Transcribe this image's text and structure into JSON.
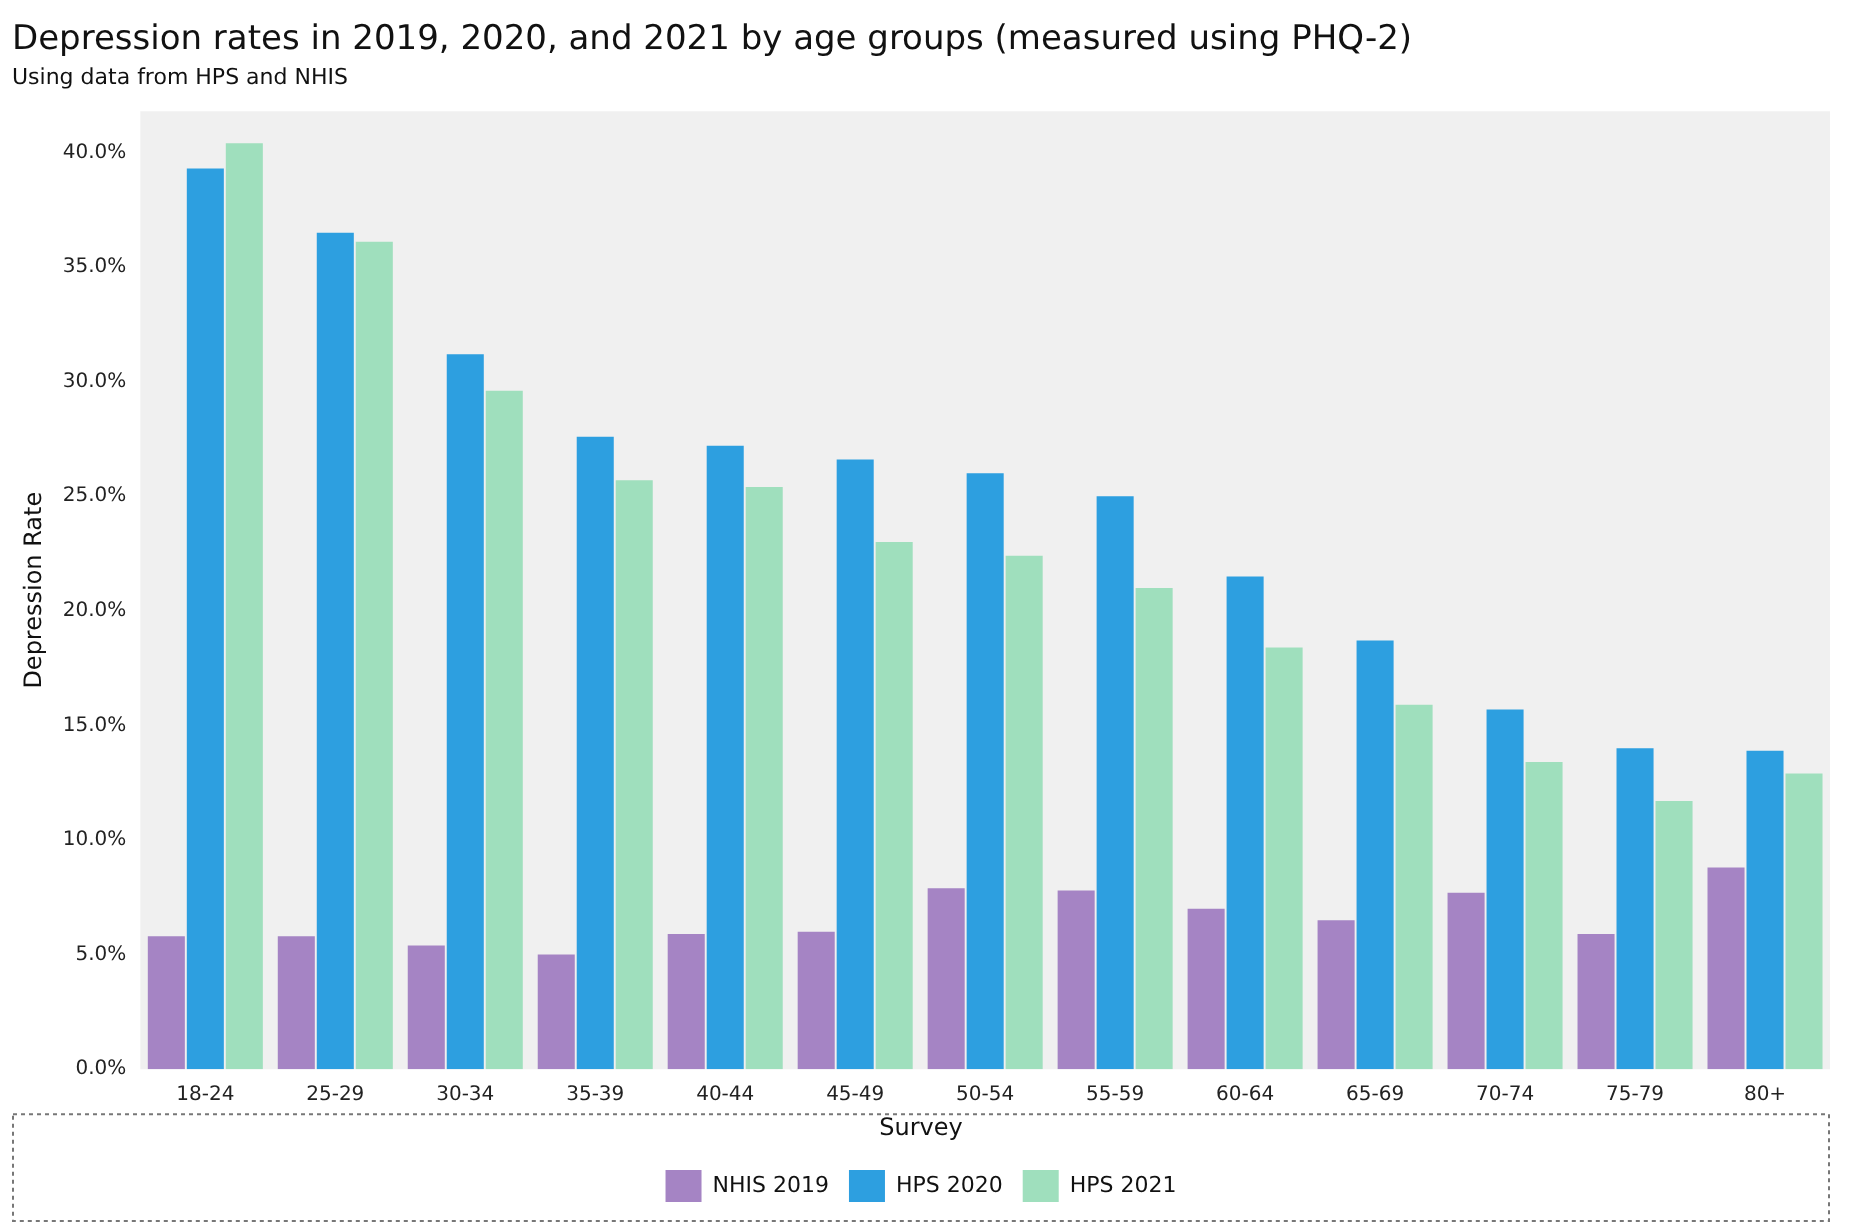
{
  "chart_data": {
    "type": "bar",
    "title": "Depression rates in 2019, 2020, and 2021 by age groups (measured using PHQ-2)",
    "subtitle": "Using data from HPS and NHIS",
    "ylabel": "Depression Rate",
    "legend_title": "Survey",
    "legend": "bottom",
    "grid": false,
    "categories": [
      "18-24",
      "25-29",
      "30-34",
      "35-39",
      "40-44",
      "45-49",
      "50-54",
      "55-59",
      "60-64",
      "65-69",
      "70-74",
      "75-79",
      "80+"
    ],
    "series": [
      {
        "name": "NHIS 2019",
        "color": "#a584c4",
        "values": [
          5.8,
          5.8,
          5.4,
          5.0,
          5.9,
          6.0,
          7.9,
          7.8,
          7.0,
          6.5,
          7.7,
          5.9,
          8.8
        ]
      },
      {
        "name": "HPS 2020",
        "color": "#2d9fe0",
        "values": [
          39.3,
          36.5,
          31.2,
          27.6,
          27.2,
          26.6,
          26.0,
          25.0,
          21.5,
          18.7,
          15.7,
          14.0,
          13.9
        ]
      },
      {
        "name": "HPS 2021",
        "color": "#9fdfbd",
        "values": [
          40.4,
          36.1,
          29.6,
          25.7,
          25.4,
          23.0,
          22.4,
          21.0,
          18.4,
          15.9,
          13.4,
          11.7,
          12.9
        ]
      }
    ],
    "ylim": [
      0,
      41.8
    ],
    "yticks": [
      {
        "value": 0,
        "label": "0.0%"
      },
      {
        "value": 5,
        "label": "5.0%"
      },
      {
        "value": 10,
        "label": "10.0%"
      },
      {
        "value": 15,
        "label": "15.0%"
      },
      {
        "value": 20,
        "label": "20.0%"
      },
      {
        "value": 25,
        "label": "25.0%"
      },
      {
        "value": 30,
        "label": "30.0%"
      },
      {
        "value": 35,
        "label": "35.0%"
      },
      {
        "value": 40,
        "label": "40.0%"
      }
    ]
  }
}
